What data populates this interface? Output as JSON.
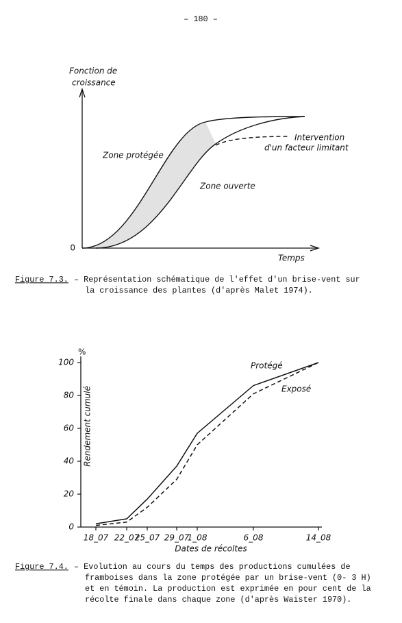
{
  "page_number": "– 180 –",
  "figure_1": {
    "y_axis_label": [
      "Fonction de",
      "croissance"
    ],
    "origin_label": "0",
    "x_axis_label": "Temps",
    "curve_labels": {
      "protected": "Zone protégée",
      "open": "Zone ouverte",
      "limit": [
        "Intervention",
        "d'un facteur limitant"
      ]
    },
    "caption": {
      "label": "Figure 7.3.",
      "lines": [
        "– Représentation schématique de l'effet d'un brise-vent sur",
        "la croissance des plantes (d'après Malet 1974)."
      ]
    }
  },
  "chart_data": {
    "type": "line",
    "y_unit": "%",
    "y_axis_label": "Rendement cumulé",
    "x_axis_label": "Dates de récoltes",
    "categories": [
      "18_07",
      "22_07",
      "25_07",
      "29_07",
      "1_08",
      "6_08",
      "14_08"
    ],
    "series": [
      {
        "name": "Protégé",
        "color": "#111111",
        "dashed": false,
        "values": [
          2,
          5,
          17,
          37,
          57,
          86,
          100
        ]
      },
      {
        "name": "Exposé",
        "color": "#111111",
        "dashed": true,
        "values": [
          1,
          3,
          12,
          29,
          50,
          81,
          100
        ]
      }
    ],
    "ylim": [
      0,
      100
    ],
    "yticks": [
      0,
      20,
      40,
      60,
      80,
      100
    ]
  },
  "figure_2_caption": {
    "label": "Figure 7.4.",
    "lines": [
      "– Evolution au cours du temps des productions cumulées de",
      "framboises dans la zone protégée par un brise-vent (0- 3 H)",
      "et en témoin.  La production est exprimée en pour cent de la",
      "récolte finale dans chaque zone (d'après Waister 1970)."
    ]
  }
}
